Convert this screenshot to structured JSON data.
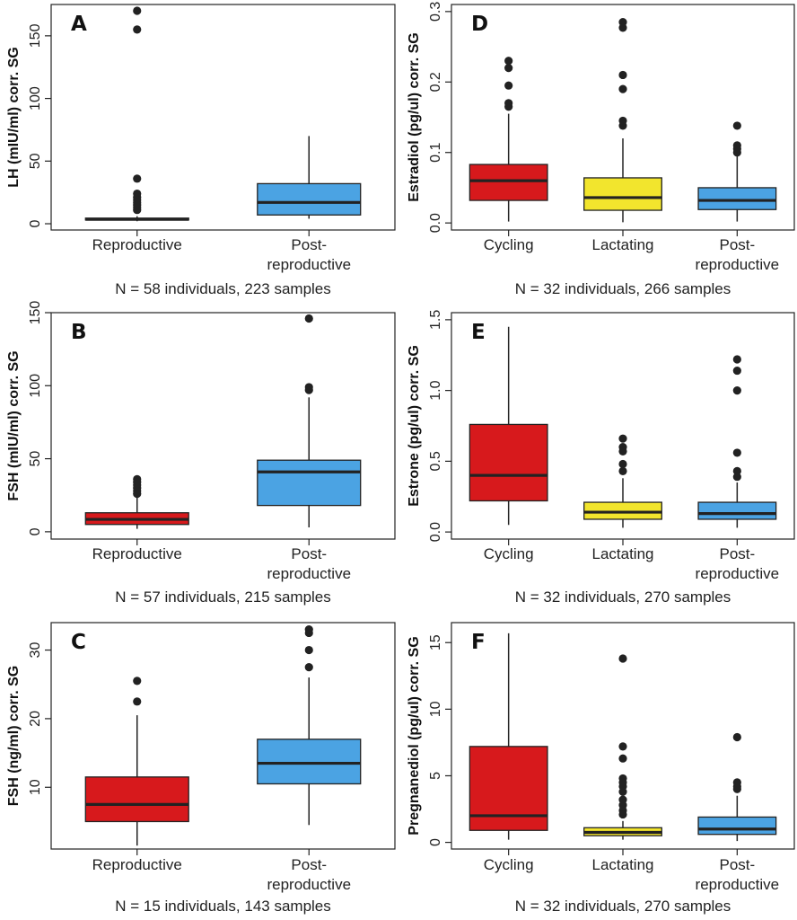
{
  "colors": {
    "red": "#d7191c",
    "blue": "#4ba3e3",
    "yellow": "#f2e52d",
    "ink": "#222222"
  },
  "chart_data": [
    {
      "type": "box",
      "panel": "A",
      "ylabel": "LH (mIU/ml) corr. SG",
      "ylim": [
        -5,
        175
      ],
      "yticks": [
        0,
        50,
        100,
        150
      ],
      "categories": [
        "Reproductive",
        "Post-\nreproductive"
      ],
      "boxes": [
        {
          "color": "red",
          "q1": 3,
          "median": 3.5,
          "q3": 4.5,
          "whisker_low": 2,
          "whisker_high": 6,
          "outliers": [
            170,
            155,
            36,
            24,
            21,
            19,
            17,
            15,
            13,
            11
          ]
        },
        {
          "color": "blue",
          "q1": 7,
          "median": 17,
          "q3": 32,
          "whisker_low": 4,
          "whisker_high": 70,
          "outliers": []
        }
      ],
      "footer": "N = 58 individuals, 223 samples"
    },
    {
      "type": "box",
      "panel": "B",
      "ylabel": "FSH (mIU/ml) corr. SG",
      "ylim": [
        -5,
        150
      ],
      "yticks": [
        0,
        50,
        100,
        150
      ],
      "categories": [
        "Reproductive",
        "Post-\nreproductive"
      ],
      "boxes": [
        {
          "color": "red",
          "q1": 5,
          "median": 8.5,
          "q3": 13,
          "whisker_low": 2,
          "whisker_high": 24,
          "outliers": [
            36,
            34,
            32,
            30,
            28,
            26
          ]
        },
        {
          "color": "blue",
          "q1": 18,
          "median": 41,
          "q3": 49,
          "whisker_low": 3,
          "whisker_high": 92,
          "outliers": [
            146,
            99,
            97
          ]
        }
      ],
      "footer": "N = 57 individuals, 215 samples"
    },
    {
      "type": "box",
      "panel": "C",
      "ylabel": "FSH (ng/ml) corr. SG",
      "ylim": [
        1,
        34
      ],
      "yticks": [
        10,
        20,
        30
      ],
      "categories": [
        "Reproductive",
        "Post-\nreproductive"
      ],
      "boxes": [
        {
          "color": "red",
          "q1": 5,
          "median": 7.5,
          "q3": 11.5,
          "whisker_low": 1.5,
          "whisker_high": 20.5,
          "outliers": [
            25.5,
            22.5
          ]
        },
        {
          "color": "blue",
          "q1": 10.5,
          "median": 13.5,
          "q3": 17,
          "whisker_low": 4.5,
          "whisker_high": 26,
          "outliers": [
            33,
            32.5,
            30,
            27.5
          ]
        }
      ],
      "footer": "N = 15 individuals, 143 samples"
    },
    {
      "type": "box",
      "panel": "D",
      "ylabel": "Estradiol (pg/ul) corr. SG",
      "ylim": [
        -0.01,
        0.31
      ],
      "yticks": [
        0.0,
        0.1,
        0.2,
        0.3
      ],
      "ytick_labels": [
        "0.0",
        "0.1",
        "0.2",
        "0.3"
      ],
      "categories": [
        "Cycling",
        "Lactating",
        "Post-\nreproductive"
      ],
      "boxes": [
        {
          "color": "red",
          "q1": 0.032,
          "median": 0.06,
          "q3": 0.083,
          "whisker_low": 0.002,
          "whisker_high": 0.155,
          "outliers": [
            0.23,
            0.22,
            0.195,
            0.17,
            0.165
          ]
        },
        {
          "color": "yellow",
          "q1": 0.018,
          "median": 0.036,
          "q3": 0.064,
          "whisker_low": 0.001,
          "whisker_high": 0.12,
          "outliers": [
            0.285,
            0.277,
            0.21,
            0.19,
            0.145,
            0.138
          ]
        },
        {
          "color": "blue",
          "q1": 0.019,
          "median": 0.032,
          "q3": 0.05,
          "whisker_low": 0.002,
          "whisker_high": 0.095,
          "outliers": [
            0.138,
            0.11,
            0.105,
            0.1
          ]
        }
      ],
      "footer": "N = 32 individuals, 266 samples"
    },
    {
      "type": "box",
      "panel": "E",
      "ylabel": "Estrone (pg/ul) corr. SG",
      "ylim": [
        -0.05,
        1.55
      ],
      "yticks": [
        0.0,
        0.5,
        1.0,
        1.5
      ],
      "ytick_labels": [
        "0.0",
        "0.5",
        "1.0",
        "1.5"
      ],
      "categories": [
        "Cycling",
        "Lactating",
        "Post-\nreproductive"
      ],
      "boxes": [
        {
          "color": "red",
          "q1": 0.22,
          "median": 0.4,
          "q3": 0.76,
          "whisker_low": 0.05,
          "whisker_high": 1.45,
          "outliers": []
        },
        {
          "color": "yellow",
          "q1": 0.09,
          "median": 0.14,
          "q3": 0.21,
          "whisker_low": 0.03,
          "whisker_high": 0.38,
          "outliers": [
            0.66,
            0.6,
            0.57,
            0.48,
            0.43
          ]
        },
        {
          "color": "blue",
          "q1": 0.09,
          "median": 0.13,
          "q3": 0.21,
          "whisker_low": 0.03,
          "whisker_high": 0.35,
          "outliers": [
            1.22,
            1.14,
            1.0,
            0.56,
            0.43,
            0.39
          ]
        }
      ],
      "footer": "N = 32 individuals, 270 samples"
    },
    {
      "type": "box",
      "panel": "F",
      "ylabel": "Pregnanediol (pg/ul) corr. SG",
      "ylim": [
        -0.5,
        16.5
      ],
      "yticks": [
        0,
        5,
        10,
        15
      ],
      "categories": [
        "Cycling",
        "Lactating",
        "Post-\nreproductive"
      ],
      "boxes": [
        {
          "color": "red",
          "q1": 0.9,
          "median": 2.0,
          "q3": 7.2,
          "whisker_low": 0.2,
          "whisker_high": 15.7,
          "outliers": []
        },
        {
          "color": "yellow",
          "q1": 0.5,
          "median": 0.75,
          "q3": 1.1,
          "whisker_low": 0.2,
          "whisker_high": 1.6,
          "outliers": [
            13.8,
            7.2,
            6.3,
            4.8,
            4.5,
            4.2,
            3.8,
            3.2,
            2.8,
            2.4,
            2.1
          ]
        },
        {
          "color": "blue",
          "q1": 0.6,
          "median": 1.0,
          "q3": 1.9,
          "whisker_low": 0.1,
          "whisker_high": 3.5,
          "outliers": [
            7.9,
            4.5,
            4.2,
            4.0
          ]
        }
      ],
      "footer": "N = 32 individuals, 270 samples"
    }
  ]
}
